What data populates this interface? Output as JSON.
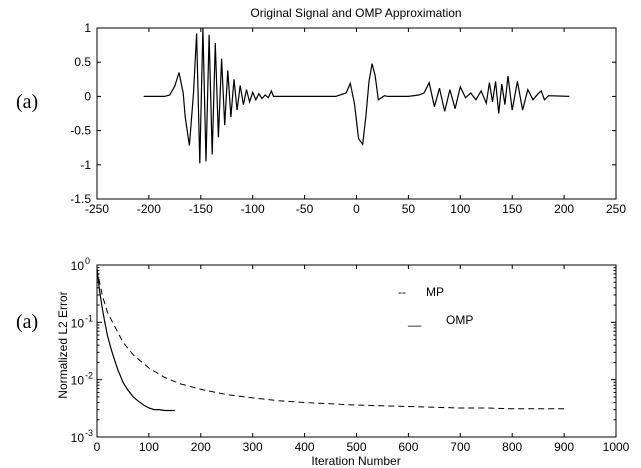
{
  "chart_data": [
    {
      "type": "line",
      "panel_label": "(a)",
      "title": "Original Signal and OMP  Approximation",
      "xlabel": "",
      "ylabel": "",
      "xlim": [
        -250,
        250
      ],
      "ylim": [
        -1.5,
        1
      ],
      "x_ticks": [
        "-250",
        "-200",
        "-150",
        "-100",
        "-50",
        "0",
        "50",
        "100",
        "150",
        "200",
        "250"
      ],
      "y_ticks": [
        "1",
        "0.5",
        "0",
        "-0.5",
        "-1",
        "-1.5"
      ],
      "series": [
        {
          "color": "#000000",
          "x": [
            -205,
            -185,
            -180,
            -175,
            -171,
            -167,
            -165,
            -161,
            -157,
            -154,
            -151,
            -148,
            -145,
            -142,
            -139,
            -136,
            -133,
            -130,
            -127,
            -124,
            -121,
            -118,
            -115,
            -112,
            -109,
            -106,
            -103,
            -100,
            -97,
            -94,
            -91,
            -88,
            -85,
            -82,
            -80,
            -50,
            -20,
            -10,
            -6,
            -2,
            2,
            6,
            9,
            12,
            15,
            18,
            21,
            24,
            27,
            30,
            35,
            50,
            60,
            65,
            70,
            75,
            80,
            85,
            90,
            95,
            100,
            105,
            110,
            115,
            120,
            125,
            128,
            131,
            134,
            137,
            140,
            143,
            146,
            150,
            155,
            160,
            165,
            170,
            175,
            178,
            181,
            185,
            205
          ],
          "y": [
            0,
            0,
            0.02,
            0.15,
            0.35,
            0.05,
            -0.3,
            -0.72,
            0.05,
            0.92,
            -0.98,
            1.0,
            -0.95,
            0.9,
            -0.85,
            0.78,
            -0.6,
            0.55,
            -0.42,
            0.38,
            -0.3,
            0.25,
            -0.2,
            0.16,
            -0.12,
            0.1,
            -0.08,
            0.06,
            -0.05,
            0.04,
            -0.03,
            0.02,
            -0.02,
            0.08,
            0,
            0,
            0,
            0.05,
            0.19,
            -0.1,
            -0.62,
            -0.7,
            -0.3,
            0.22,
            0.48,
            0.3,
            -0.05,
            -0.02,
            0.01,
            0,
            0,
            0,
            0.02,
            0.05,
            0.2,
            -0.15,
            0.12,
            -0.22,
            0.1,
            -0.18,
            0.14,
            -0.02,
            0.05,
            -0.05,
            0.08,
            -0.1,
            0.2,
            -0.08,
            0.22,
            -0.25,
            0.18,
            -0.12,
            0.3,
            -0.2,
            0.22,
            -0.2,
            0.1,
            -0.05,
            0.04,
            0.08,
            -0.05,
            0.01,
            0
          ]
        }
      ]
    },
    {
      "type": "line",
      "panel_label": "(a)",
      "title": "",
      "xlabel": "Iteration Number",
      "ylabel": "Normalized L2  Error",
      "xlim": [
        0,
        1000
      ],
      "ylim": [
        0.001,
        1
      ],
      "y_scale": "log",
      "x_ticks": [
        "0",
        "100",
        "200",
        "300",
        "400",
        "500",
        "600",
        "700",
        "800",
        "900",
        "1000"
      ],
      "y_ticks": [
        {
          "base": "10",
          "exp": "0"
        },
        {
          "base": "10",
          "exp": "-1"
        },
        {
          "base": "10",
          "exp": "-2"
        },
        {
          "base": "10",
          "exp": "-3"
        }
      ],
      "legend": {
        "placement": "top-right",
        "entries": [
          {
            "label": "MP",
            "sample": "--"
          },
          {
            "label": "OMP",
            "sample": "__"
          }
        ]
      },
      "series": [
        {
          "name": "MP",
          "style": "dashed",
          "color": "#000000",
          "x": [
            0,
            5,
            10,
            20,
            30,
            50,
            70,
            100,
            130,
            160,
            200,
            250,
            300,
            350,
            400,
            450,
            500,
            550,
            600,
            650,
            700,
            750,
            800,
            850,
            900
          ],
          "y": [
            0.85,
            0.5,
            0.3,
            0.15,
            0.1,
            0.045,
            0.027,
            0.016,
            0.011,
            0.0085,
            0.0068,
            0.0055,
            0.0048,
            0.0043,
            0.004,
            0.0038,
            0.0036,
            0.0035,
            0.0034,
            0.0033,
            0.0032,
            0.0032,
            0.0031,
            0.0031,
            0.0031
          ]
        },
        {
          "name": "OMP",
          "style": "solid",
          "color": "#000000",
          "x": [
            0,
            5,
            10,
            15,
            20,
            25,
            30,
            40,
            50,
            60,
            70,
            80,
            90,
            100,
            110,
            120,
            130,
            150
          ],
          "y": [
            0.85,
            0.35,
            0.18,
            0.1,
            0.06,
            0.04,
            0.028,
            0.015,
            0.009,
            0.0065,
            0.005,
            0.0042,
            0.0036,
            0.0032,
            0.003,
            0.003,
            0.0029,
            0.0029
          ]
        }
      ]
    }
  ]
}
